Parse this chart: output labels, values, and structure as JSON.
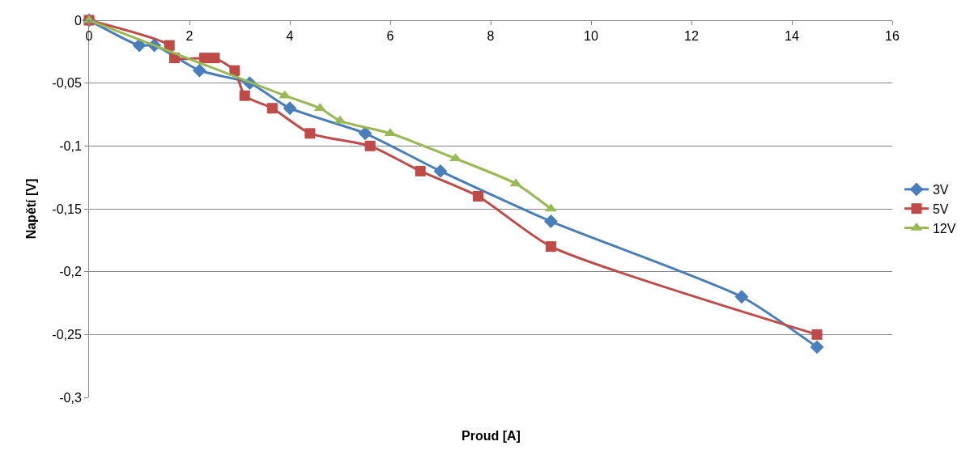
{
  "chart_data": {
    "type": "line",
    "xlabel": "Proud [A]",
    "ylabel": "Napětí [V]",
    "xlim": [
      0,
      16
    ],
    "xticks": [
      0,
      2,
      4,
      6,
      8,
      10,
      12,
      14,
      16
    ],
    "ylim": [
      -0.3,
      0
    ],
    "yticks": [
      {
        "value": -0.3,
        "label": "-0,3"
      },
      {
        "value": -0.25,
        "label": "-0,25"
      },
      {
        "value": -0.2,
        "label": "-0,2"
      },
      {
        "value": -0.15,
        "label": "-0,15"
      },
      {
        "value": -0.1,
        "label": "-0,1"
      },
      {
        "value": -0.05,
        "label": "-0,05"
      },
      {
        "value": 0,
        "label": "0"
      }
    ],
    "grid": "y",
    "legend": "right",
    "series": [
      {
        "name": "3V",
        "color": "#4a7ebb",
        "marker": "diamond",
        "x": [
          0,
          1,
          1.3,
          2.2,
          3.2,
          4,
          5.5,
          7,
          9.2,
          13,
          14.5
        ],
        "values": [
          0,
          -0.02,
          -0.02,
          -0.04,
          -0.05,
          -0.07,
          -0.09,
          -0.12,
          -0.16,
          -0.22,
          -0.26
        ]
      },
      {
        "name": "5V",
        "color": "#be4b48",
        "marker": "square",
        "x": [
          0,
          1.6,
          1.7,
          2.3,
          2.5,
          2.9,
          3.1,
          3.65,
          4.4,
          5.6,
          6.6,
          7.75,
          9.2,
          14.5
        ],
        "values": [
          0,
          -0.02,
          -0.03,
          -0.03,
          -0.03,
          -0.04,
          -0.06,
          -0.07,
          -0.09,
          -0.1,
          -0.12,
          -0.14,
          -0.18,
          -0.25
        ]
      },
      {
        "name": "12V",
        "color": "#98b954",
        "marker": "triangle",
        "x": [
          0,
          3.9,
          4.6,
          5,
          6,
          7.3,
          8.5,
          9.2
        ],
        "values": [
          0,
          -0.06,
          -0.07,
          -0.08,
          -0.09,
          -0.11,
          -0.13,
          -0.15
        ]
      }
    ]
  }
}
